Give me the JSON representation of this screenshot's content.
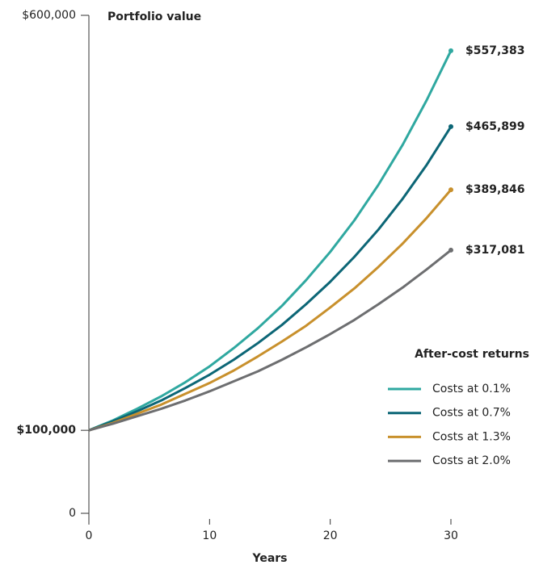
{
  "chart_data": {
    "type": "line",
    "ylabel": "Portfolio value",
    "xlabel": "Years",
    "x": [
      0,
      2,
      4,
      6,
      8,
      10,
      12,
      14,
      16,
      18,
      20,
      22,
      24,
      26,
      28,
      30
    ],
    "series": [
      {
        "name": "Costs at 0.1%",
        "color": "#2fa8a0",
        "values": [
          100000,
          112000,
          126000,
          141000,
          158000,
          177000,
          199000,
          223000,
          250000,
          281000,
          315000,
          353000,
          396000,
          444000,
          498000,
          557383
        ],
        "value_labels": [
          null,
          null,
          null,
          null,
          null,
          null,
          null,
          null,
          null,
          null,
          null,
          null,
          null,
          null,
          null,
          "$557,383"
        ]
      },
      {
        "name": "Costs at 0.7%",
        "color": "#0c6676",
        "values": [
          100000,
          111000,
          123000,
          136000,
          151000,
          167000,
          185000,
          205000,
          227000,
          252000,
          279000,
          309000,
          342000,
          379000,
          420000,
          465899
        ],
        "value_labels": [
          null,
          null,
          null,
          null,
          null,
          null,
          null,
          null,
          null,
          null,
          null,
          null,
          null,
          null,
          null,
          "$465,899"
        ]
      },
      {
        "name": "Costs at 1.3%",
        "color": "#c8902c",
        "values": [
          100000,
          109000,
          120000,
          131000,
          144000,
          157000,
          172000,
          189000,
          207000,
          226000,
          248000,
          271000,
          297000,
          325000,
          356000,
          389846
        ],
        "value_labels": [
          null,
          null,
          null,
          null,
          null,
          null,
          null,
          null,
          null,
          null,
          null,
          null,
          null,
          null,
          null,
          "$389,846"
        ]
      },
      {
        "name": "Costs at 2.0%",
        "color": "#6d6e70",
        "values": [
          100000,
          108000,
          117000,
          126000,
          136000,
          147000,
          159000,
          171000,
          185000,
          200000,
          216000,
          233000,
          252000,
          272000,
          294000,
          317081
        ],
        "value_labels": [
          null,
          null,
          null,
          null,
          null,
          null,
          null,
          null,
          null,
          null,
          null,
          null,
          null,
          null,
          null,
          "$317,081"
        ]
      }
    ],
    "xlim": [
      0,
      30
    ],
    "xticks": [
      0,
      10,
      20,
      30
    ],
    "ylim": [
      0,
      600000
    ],
    "yticks": [
      0,
      {
        "value": 100000,
        "label": "$100,000"
      },
      {
        "value": 600000,
        "label": "$600,000"
      }
    ],
    "legend": {
      "title": "After-cost returns",
      "position": "right"
    }
  }
}
